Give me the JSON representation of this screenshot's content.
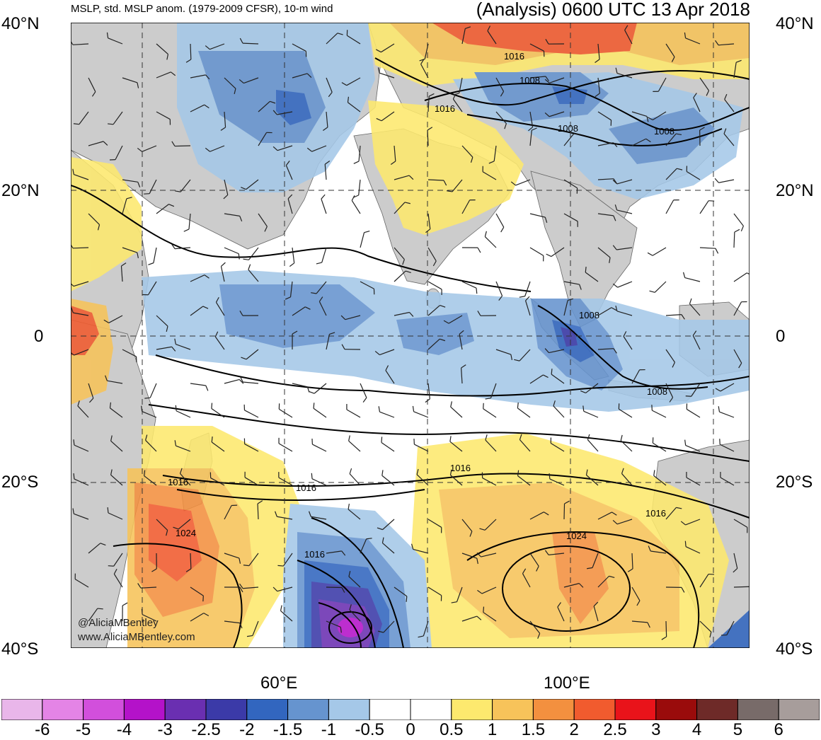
{
  "title_left": "MSLP, std. MSLP anom. (1979-2009 CFSR), 10-m wind",
  "title_right": "(Analysis) 0600 UTC 13 Apr 2018",
  "lat_labels": [
    "40°N",
    "20°N",
    "0",
    "20°S",
    "40°S"
  ],
  "lon_labels": [
    "60°E",
    "100°E"
  ],
  "isobar_labels": [
    "1016",
    "1008",
    "1016",
    "1008",
    "1008",
    "1008",
    "1008",
    "1016",
    "1016",
    "1016",
    "1024",
    "1016",
    "1016",
    "1024"
  ],
  "credit": {
    "handle": "@AliciaMBentley",
    "site": "www.AliciaMBentley.com"
  },
  "colorbar": {
    "labels": [
      "-6",
      "-5",
      "-4",
      "-3",
      "-2.5",
      "-2",
      "-1.5",
      "-1",
      "-0.5",
      "0",
      "0.5",
      "1",
      "1.5",
      "2",
      "2.5",
      "3",
      "4",
      "5",
      "6"
    ],
    "colors": [
      "#e9b6ea",
      "#e484e6",
      "#d24fdc",
      "#b412c9",
      "#6a2fb1",
      "#3b3aa8",
      "#3266bf",
      "#6694cf",
      "#a5c8e8",
      "#ffffff",
      "#ffffff",
      "#fde96e",
      "#f7c35a",
      "#f3903f",
      "#f15b2e",
      "#e9131a",
      "#9a0b0b",
      "#6e2a28",
      "#786b69",
      "#a79d9b"
    ]
  },
  "colors": {
    "land": "#cccccc",
    "ocean": "#ffffff",
    "isobar": "#000000",
    "coast": "#555555"
  }
}
